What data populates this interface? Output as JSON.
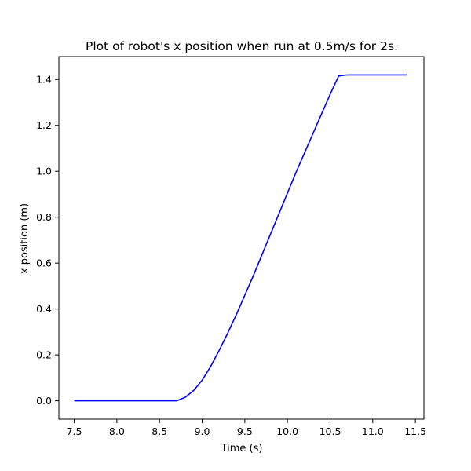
{
  "chart_data": {
    "type": "line",
    "title": "Plot of robot's x position when run at 0.5m/s for 2s.",
    "xlabel": "Time (s)",
    "ylabel": "x position (m)",
    "xlim": [
      7.32,
      11.6
    ],
    "ylim": [
      -0.08,
      1.5
    ],
    "x_ticks": [
      7.5,
      8.0,
      8.5,
      9.0,
      9.5,
      10.0,
      10.5,
      11.0,
      11.5
    ],
    "x_tick_labels": [
      "7.5",
      "8.0",
      "8.5",
      "9.0",
      "9.5",
      "10.0",
      "10.5",
      "11.0",
      "11.5"
    ],
    "y_ticks": [
      0.0,
      0.2,
      0.4,
      0.6,
      0.8,
      1.0,
      1.2,
      1.4
    ],
    "y_tick_labels": [
      "0.0",
      "0.2",
      "0.4",
      "0.6",
      "0.8",
      "1.0",
      "1.2",
      "1.4"
    ],
    "grid": false,
    "series": [
      {
        "color": "#0000ff",
        "x": [
          7.5,
          8.0,
          8.5,
          8.7,
          8.8,
          8.9,
          9.0,
          9.1,
          9.2,
          9.3,
          9.4,
          9.5,
          9.6,
          9.7,
          9.8,
          9.9,
          10.0,
          10.1,
          10.2,
          10.3,
          10.4,
          10.5,
          10.6,
          10.7,
          10.8,
          11.0,
          11.4
        ],
        "y": [
          0.0,
          0.0,
          0.0,
          0.0,
          0.015,
          0.045,
          0.09,
          0.15,
          0.22,
          0.295,
          0.375,
          0.46,
          0.545,
          0.635,
          0.725,
          0.815,
          0.905,
          0.995,
          1.08,
          1.165,
          1.25,
          1.335,
          1.415,
          1.42,
          1.42,
          1.42,
          1.42
        ]
      }
    ]
  }
}
